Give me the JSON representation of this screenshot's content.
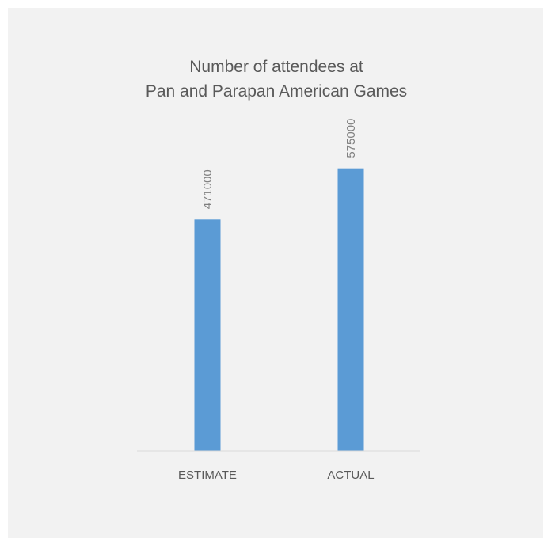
{
  "chart_data": {
    "type": "bar",
    "title_lines": [
      "Number of attendees at",
      "Pan and Parapan American Games"
    ],
    "categories": [
      "ESTIMATE",
      "ACTUAL"
    ],
    "values": [
      471000,
      575000
    ],
    "data_labels": [
      "471000",
      "575000"
    ],
    "ylim": [
      0,
      700000
    ],
    "grid": false,
    "legend": "none",
    "bar_color": "#5b9bd5",
    "background_color": "#f2f2f2",
    "axis_color": "#d9d9d9"
  }
}
